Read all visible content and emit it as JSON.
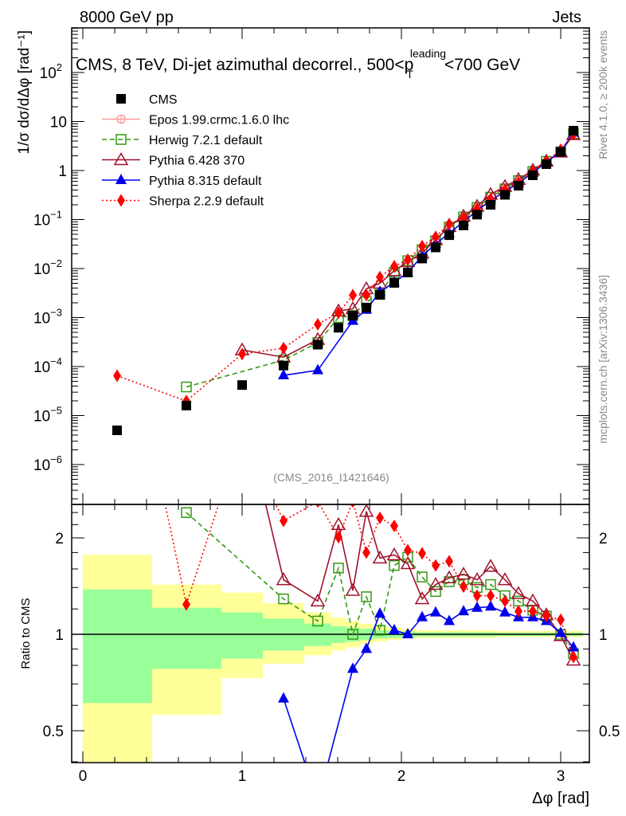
{
  "header": {
    "left": "8000 GeV pp",
    "right": "Jets",
    "side_top": "Rivet 4.1.0, ≥ 200k events",
    "side_bottom": "mcplots.cern.ch [arXiv:1306.3436]"
  },
  "chart_data": {
    "type": "line",
    "title": "CMS, 8 TeV, Di-jet azimuthal decorrel., 500<p",
    "title_sup": "leading",
    "title_sub": "T",
    "title_end": "<700 GeV",
    "analysis_tag": "(CMS_2016_I1421646)",
    "xlabel": "Δφ [rad]",
    "ylabel": "1/σ dσ/dΔφ [rad⁻¹]",
    "ratio_ylabel": "Ratio to CMS",
    "xlim": [
      -0.07,
      3.18
    ],
    "ylim": [
      1.4e-07,
      760
    ],
    "ratio_ylim": [
      0.397,
      2.54
    ],
    "yscale": "log",
    "ratio_yscale": "log",
    "legend_position": "top-left",
    "x_ticks": [
      "0",
      "1",
      "2",
      "3"
    ],
    "y_ticks": [
      {
        "v": 100,
        "b": "10",
        "e": "2"
      },
      {
        "v": 10,
        "b": "10",
        "e": ""
      },
      {
        "v": 1,
        "b": "1",
        "e": ""
      },
      {
        "v": 0.1,
        "b": "10",
        "e": "−1"
      },
      {
        "v": 0.01,
        "b": "10",
        "e": "−2"
      },
      {
        "v": 0.001,
        "b": "10",
        "e": "−3"
      },
      {
        "v": 0.0001,
        "b": "10",
        "e": "−4"
      },
      {
        "v": 1e-05,
        "b": "10",
        "e": "−5"
      },
      {
        "v": 1e-06,
        "b": "10",
        "e": "−6"
      }
    ],
    "ratio_ticks": [
      "0.5",
      "1",
      "2"
    ],
    "x": [
      0.215,
      0.65,
      1.0,
      1.26,
      1.475,
      1.605,
      1.695,
      1.78,
      1.865,
      1.955,
      2.04,
      2.13,
      2.215,
      2.3,
      2.39,
      2.475,
      2.56,
      2.65,
      2.735,
      2.825,
      2.91,
      3.0,
      3.08
    ],
    "reference": {
      "name": "CMS",
      "color": "#000000",
      "values": [
        5e-06,
        1.6e-05,
        4.2e-05,
        0.000105,
        0.00028,
        0.00062,
        0.0011,
        0.0016,
        0.0029,
        0.0051,
        0.0083,
        0.016,
        0.027,
        0.048,
        0.076,
        0.126,
        0.2,
        0.32,
        0.49,
        0.8,
        1.35,
        2.4,
        6.5
      ]
    },
    "series": [
      {
        "name": "Epos 1.99.crmc.1.6.0 lhc",
        "color": "#ff9999",
        "marker": "circle-cross",
        "dash": "",
        "ratio": []
      },
      {
        "name": "Herwig 7.2.1 default",
        "color": "#339911",
        "marker": "open-square",
        "dash": "6,4",
        "ratio": [
          null,
          2.4,
          null,
          1.29,
          1.1,
          1.61,
          1.0,
          1.31,
          1.03,
          1.64,
          1.74,
          1.51,
          1.36,
          1.46,
          1.48,
          1.4,
          1.43,
          1.32,
          1.27,
          1.19,
          1.14,
          1.0,
          0.87
        ]
      },
      {
        "name": "Pythia 6.428 370",
        "color": "#a0102a",
        "marker": "open-triangle",
        "dash": "",
        "ratio": [
          null,
          null,
          5.2,
          1.48,
          1.27,
          2.2,
          1.37,
          2.42,
          1.73,
          1.77,
          1.66,
          1.29,
          1.43,
          1.5,
          1.54,
          1.48,
          1.63,
          1.48,
          1.34,
          1.27,
          1.15,
          0.99,
          0.83
        ]
      },
      {
        "name": "Pythia 8.315 default",
        "color": "#0000ee",
        "marker": "filled-triangle",
        "dash": "",
        "ratio": [
          null,
          null,
          null,
          0.63,
          0.3,
          null,
          0.78,
          0.9,
          1.16,
          1.03,
          1.0,
          1.13,
          1.17,
          1.1,
          1.18,
          1.21,
          1.22,
          1.17,
          1.13,
          1.13,
          1.1,
          1.01,
          0.91
        ]
      },
      {
        "name": "Sherpa 2.2.9 default",
        "color": "#ff0000",
        "marker": "diamond",
        "dash": "2,3",
        "ratio": [
          13,
          1.24,
          4.3,
          2.26,
          2.6,
          2.01,
          2.6,
          1.8,
          2.31,
          2.18,
          1.83,
          1.79,
          1.64,
          1.69,
          1.41,
          1.32,
          1.32,
          1.27,
          1.18,
          1.18,
          1.14,
          1.11,
          0.85
        ]
      }
    ],
    "uncertainty_bands": {
      "inner_color": "#99ff99",
      "outer_color": "#ffff99",
      "bins": [
        {
          "lo": 0.0,
          "hi": 0.435,
          "outer": [
            0.3,
            1.77
          ],
          "inner": [
            0.61,
            1.38
          ]
        },
        {
          "lo": 0.435,
          "hi": 0.87,
          "outer": [
            0.56,
            1.43
          ],
          "inner": [
            0.78,
            1.21
          ]
        },
        {
          "lo": 0.87,
          "hi": 1.13,
          "outer": [
            0.73,
            1.35
          ],
          "inner": [
            0.84,
            1.17
          ]
        },
        {
          "lo": 1.13,
          "hi": 1.39,
          "outer": [
            0.81,
            1.25
          ],
          "inner": [
            0.89,
            1.12
          ]
        },
        {
          "lo": 1.39,
          "hi": 1.56,
          "outer": [
            0.86,
            1.17
          ],
          "inner": [
            0.92,
            1.08
          ]
        },
        {
          "lo": 1.56,
          "hi": 1.65,
          "outer": [
            0.89,
            1.13
          ],
          "inner": [
            0.94,
            1.06
          ]
        },
        {
          "lo": 1.65,
          "hi": 1.74,
          "outer": [
            0.91,
            1.1
          ],
          "inner": [
            0.95,
            1.05
          ]
        },
        {
          "lo": 1.74,
          "hi": 1.82,
          "outer": [
            0.93,
            1.08
          ],
          "inner": [
            0.96,
            1.04
          ]
        },
        {
          "lo": 1.82,
          "hi": 1.91,
          "outer": [
            0.95,
            1.06
          ],
          "inner": [
            0.97,
            1.03
          ]
        },
        {
          "lo": 1.91,
          "hi": 2.0,
          "outer": [
            0.96,
            1.05
          ],
          "inner": [
            0.975,
            1.025
          ]
        },
        {
          "lo": 2.0,
          "hi": 2.09,
          "outer": [
            0.97,
            1.04
          ],
          "inner": [
            0.98,
            1.02
          ]
        },
        {
          "lo": 2.09,
          "hi": 2.6,
          "outer": [
            0.975,
            1.03
          ],
          "inner": [
            0.985,
            1.015
          ]
        },
        {
          "lo": 2.6,
          "hi": 3.14,
          "outer": [
            0.98,
            1.025
          ],
          "inner": [
            0.988,
            1.012
          ]
        }
      ]
    }
  }
}
